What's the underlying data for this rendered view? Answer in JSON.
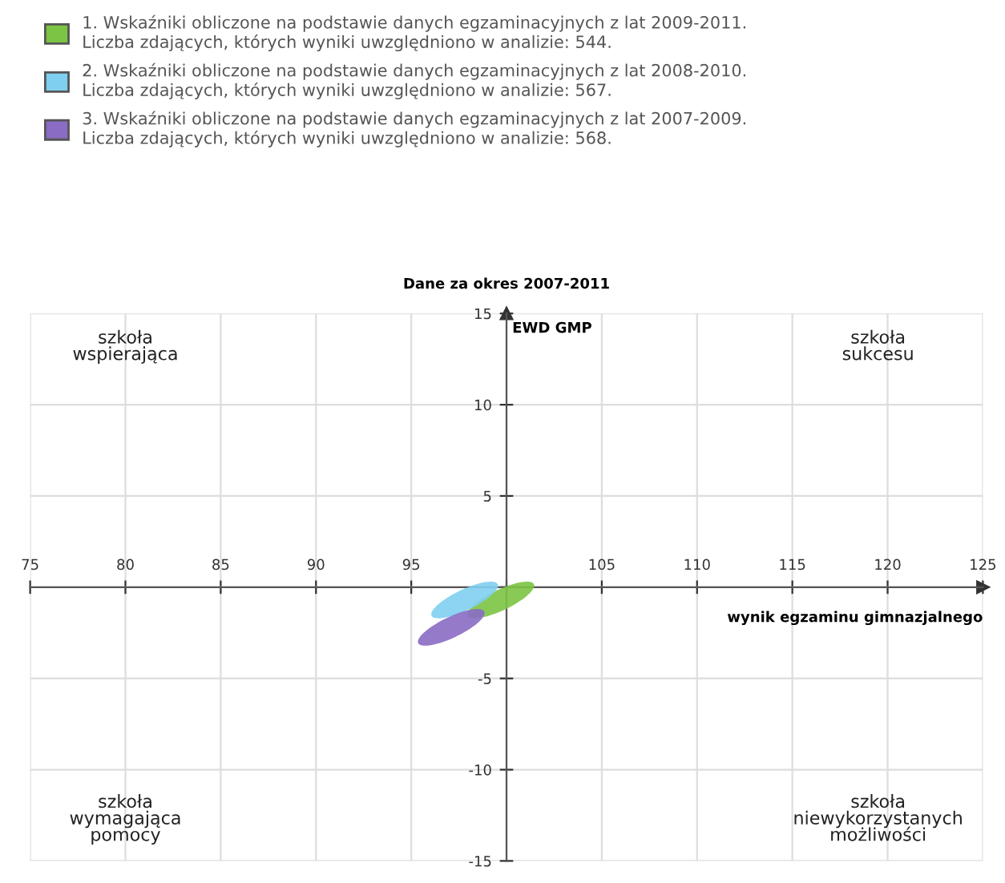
{
  "chart_data": {
    "type": "scatter",
    "title": "Dane za okres 2007-2011",
    "xlabel": "wynik egzaminu gimnazjalnego",
    "ylabel": "EWD GMP",
    "series": [
      {
        "name": "1. Wskaźniki obliczone na podstawie danych egzaminacyjnych z lat 2009-2011.\nLiczba zdających, których wyniki uwzględniono w analizie: 544.",
        "color": "#7cc444",
        "x": [
          99.7
        ],
        "values": [
          -0.7
        ]
      },
      {
        "name": "2. Wskaźniki obliczone na podstawie danych egzaminacyjnych z lat 2008-2010.\nLiczba zdających, których wyniki uwzględniono w analizie: 567.",
        "color": "#7fcff0",
        "x": [
          97.8
        ],
        "values": [
          -0.7
        ]
      },
      {
        "name": "3. Wskaźniki obliczone na podstawie danych egzaminacyjnych z lat 2007-2009.\nLiczba zdających, których wyniki uwzględniono w analizie: 568.",
        "color": "#8a6cc4",
        "x": [
          97.1
        ],
        "values": [
          -2.2
        ]
      }
    ],
    "xlim": [
      75,
      125
    ],
    "xticks": [
      75,
      80,
      85,
      90,
      95,
      {
        "value": 100,
        "label": null
      },
      105,
      110,
      115,
      120,
      125
    ],
    "ylim": [
      -15,
      15
    ],
    "yticks": [
      -15,
      -10,
      -5,
      {
        "value": 0,
        "label": null
      },
      5,
      10,
      15
    ],
    "grid": true,
    "legend": "top",
    "annotations": [
      "szkoła\nwspierająca",
      "szkoła\nsukcesu",
      "szkoła\nwymagająca\npomocy",
      "szkoła\nniewykorzystanych\nmożliwości"
    ]
  }
}
